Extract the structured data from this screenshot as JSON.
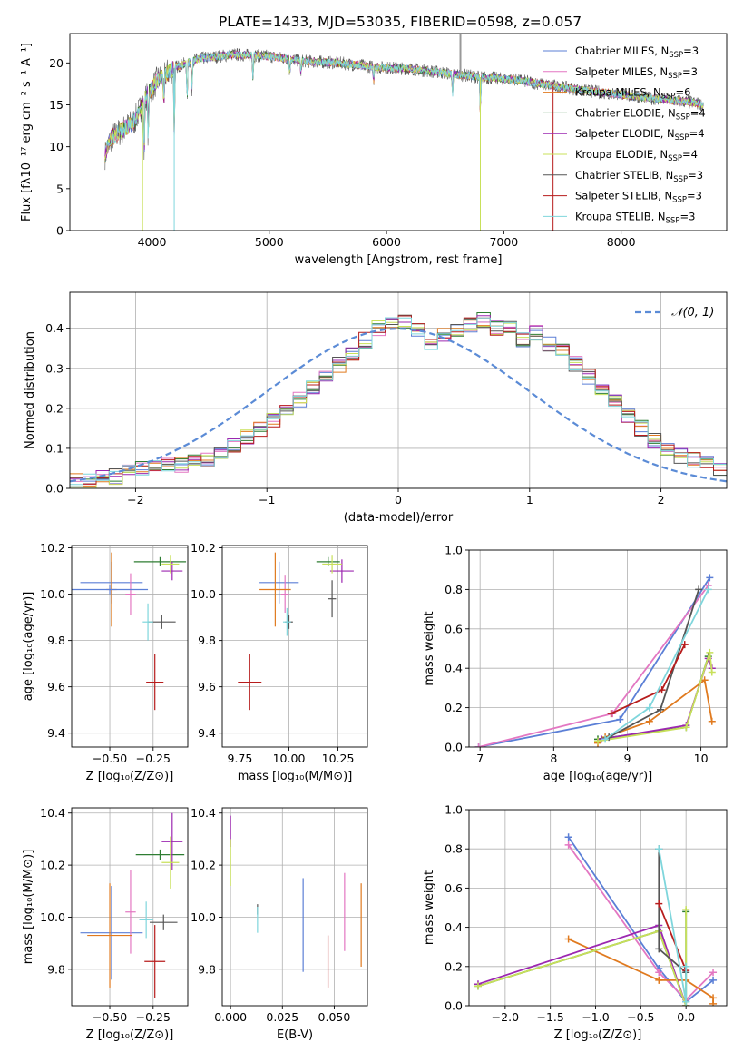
{
  "figure": {
    "title": "PLATE=1433, MJD=53035, FIBERID=0598, z=0.057"
  },
  "colors": {
    "chabrier_miles": "#5b7fd6",
    "salpeter_miles": "#e377c2",
    "kroupa_miles": "#e07a1f",
    "chabrier_elodie": "#2e7d32",
    "salpeter_elodie": "#9c27b0",
    "kroupa_elodie": "#c8e05a",
    "chabrier_stelib": "#555555",
    "salpeter_stelib": "#b71c1c",
    "kroupa_stelib": "#7fd6dc"
  },
  "chart_data": [
    {
      "id": "spectrum",
      "type": "line",
      "xlabel": "wavelength [Angstrom, rest frame]",
      "ylabel": "Flux [fλ10⁻¹⁷ erg cm⁻² s⁻¹ A⁻¹]",
      "xlim": [
        3300,
        8900
      ],
      "ylim": [
        0,
        23.5
      ],
      "xticks": [
        4000,
        5000,
        6000,
        7000,
        8000
      ],
      "yticks": [
        0,
        5,
        10,
        15,
        20
      ],
      "legend_placement": "right",
      "legend": [
        {
          "text": "Chabrier MILES, N",
          "sub": "SSP",
          "tail": "=3",
          "color": "chabrier_miles"
        },
        {
          "text": "Salpeter MILES, N",
          "sub": "SSP",
          "tail": "=3",
          "color": "salpeter_miles"
        },
        {
          "text": "Kroupa MILES, N",
          "sub": "SSP",
          "tail": "=6",
          "color": "kroupa_miles"
        },
        {
          "text": "Chabrier ELODIE, N",
          "sub": "SSP",
          "tail": "=4",
          "color": "chabrier_elodie"
        },
        {
          "text": "Salpeter ELODIE, N",
          "sub": "SSP",
          "tail": "=4",
          "color": "salpeter_elodie"
        },
        {
          "text": "Kroupa ELODIE, N",
          "sub": "SSP",
          "tail": "=4",
          "color": "kroupa_elodie"
        },
        {
          "text": "Chabrier STELIB, N",
          "sub": "SSP",
          "tail": "=3",
          "color": "chabrier_stelib"
        },
        {
          "text": "Salpeter STELIB, N",
          "sub": "SSP",
          "tail": "=3",
          "color": "salpeter_stelib"
        },
        {
          "text": "Kroupa STELIB, N",
          "sub": "SSP",
          "tail": "=3",
          "color": "kroupa_stelib"
        }
      ],
      "continuum": [
        [
          3600,
          9
        ],
        [
          3650,
          11
        ],
        [
          3750,
          12
        ],
        [
          3850,
          13
        ],
        [
          3950,
          16
        ],
        [
          4050,
          18
        ],
        [
          4200,
          19.5
        ],
        [
          4400,
          20.5
        ],
        [
          4700,
          21
        ],
        [
          5000,
          20.8
        ],
        [
          5300,
          20.2
        ],
        [
          5600,
          20
        ],
        [
          5900,
          19.5
        ],
        [
          6200,
          19.3
        ],
        [
          6500,
          18.8
        ],
        [
          6800,
          18.3
        ],
        [
          7100,
          18
        ],
        [
          7400,
          17.3
        ],
        [
          7700,
          16.7
        ],
        [
          8000,
          16.2
        ],
        [
          8300,
          15.7
        ],
        [
          8600,
          15.3
        ],
        [
          8700,
          15
        ]
      ]
    },
    {
      "id": "residual_histogram",
      "type": "step",
      "xlabel": "(data-model)/error",
      "ylabel": "Normed distribution",
      "xlim": [
        -2.5,
        2.5
      ],
      "ylim": [
        0,
        0.49
      ],
      "xticks": [
        -2,
        -1,
        0,
        1,
        2
      ],
      "yticks": [
        0.0,
        0.1,
        0.2,
        0.3,
        0.4
      ],
      "grid": true,
      "legend_placement": "top-right",
      "reference_curve": {
        "name": "𝒩(0, 1)",
        "mean": 0,
        "sigma": 1,
        "color": "#5b8bd6",
        "dash": true
      },
      "bin_width": 0.1,
      "x_start": -2.5,
      "base_values": [
        0.02,
        0.02,
        0.03,
        0.03,
        0.04,
        0.05,
        0.05,
        0.06,
        0.06,
        0.07,
        0.07,
        0.09,
        0.11,
        0.13,
        0.15,
        0.17,
        0.19,
        0.22,
        0.25,
        0.28,
        0.31,
        0.34,
        0.37,
        0.4,
        0.41,
        0.42,
        0.4,
        0.36,
        0.38,
        0.4,
        0.41,
        0.42,
        0.4,
        0.4,
        0.37,
        0.39,
        0.36,
        0.34,
        0.31,
        0.28,
        0.25,
        0.22,
        0.18,
        0.15,
        0.12,
        0.1,
        0.08,
        0.07,
        0.06,
        0.05
      ]
    },
    {
      "id": "age_vs_Z",
      "type": "errorbar",
      "xlabel": "Z [log₁₀(Z/Z⊙)]",
      "ylabel": "age  [log₁₀(age/yr)]",
      "xlim": [
        -0.72,
        -0.05
      ],
      "ylim": [
        9.34,
        10.21
      ],
      "xticks": [
        -0.5,
        -0.25
      ],
      "xtick_labels": [
        "−0.50",
        "−0.25"
      ],
      "yticks": [
        9.4,
        9.6,
        9.8,
        10.0,
        10.2
      ],
      "grid": true,
      "points": [
        {
          "color": "chabrier_miles",
          "x": -0.49,
          "xerr": 0.18,
          "y": 10.05,
          "yerr": 0.09
        },
        {
          "color": "salpeter_miles",
          "x": -0.38,
          "xerr": 0.03,
          "y": 10.0,
          "yerr": 0.09
        },
        {
          "color": "kroupa_miles",
          "x": -0.49,
          "xerr": 0.03,
          "y": 10.02,
          "yerr": 0.16
        },
        {
          "color": "chabrier_elodie",
          "x": -0.21,
          "xerr": 0.15,
          "y": 10.14,
          "yerr": 0.02
        },
        {
          "color": "salpeter_elodie",
          "x": -0.14,
          "xerr": 0.06,
          "y": 10.1,
          "yerr": 0.04
        },
        {
          "color": "kroupa_elodie",
          "x": -0.15,
          "xerr": 0.05,
          "y": 10.13,
          "yerr": 0.04
        },
        {
          "color": "chabrier_stelib",
          "x": -0.2,
          "xerr": 0.08,
          "y": 9.88,
          "yerr": 0.03
        },
        {
          "color": "salpeter_stelib",
          "x": -0.24,
          "xerr": 0.05,
          "y": 9.62,
          "yerr": 0.12
        },
        {
          "color": "kroupa_stelib",
          "x": -0.28,
          "xerr": 0.03,
          "y": 9.88,
          "yerr": 0.08
        },
        {
          "color": "chabrier_miles",
          "x": -0.5,
          "xerr": 0.22,
          "y": 10.02,
          "yerr": 0.02
        }
      ]
    },
    {
      "id": "age_vs_mass",
      "type": "errorbar",
      "xlabel": "mass [log₁₀(M/M⊙)]",
      "ylabel": "",
      "xlim": [
        9.66,
        10.4
      ],
      "ylim": [
        9.34,
        10.21
      ],
      "xticks": [
        9.75,
        10.0,
        10.25
      ],
      "xtick_labels": [
        "9.75",
        "10.00",
        "10.25"
      ],
      "yticks": [
        9.4,
        9.6,
        9.8,
        10.0,
        10.2
      ],
      "grid": true,
      "points": [
        {
          "color": "chabrier_miles",
          "x": 9.95,
          "xerr": 0.1,
          "y": 10.05,
          "yerr": 0.09
        },
        {
          "color": "salpeter_miles",
          "x": 9.98,
          "xerr": 0.02,
          "y": 10.0,
          "yerr": 0.08
        },
        {
          "color": "kroupa_miles",
          "x": 9.93,
          "xerr": 0.08,
          "y": 10.02,
          "yerr": 0.16
        },
        {
          "color": "chabrier_elodie",
          "x": 10.2,
          "xerr": 0.06,
          "y": 10.14,
          "yerr": 0.02
        },
        {
          "color": "salpeter_elodie",
          "x": 10.27,
          "xerr": 0.06,
          "y": 10.1,
          "yerr": 0.05
        },
        {
          "color": "kroupa_elodie",
          "x": 10.22,
          "xerr": 0.05,
          "y": 10.13,
          "yerr": 0.04
        },
        {
          "color": "chabrier_stelib",
          "x": 10.0,
          "xerr": 0.02,
          "y": 9.88,
          "yerr": 0.03
        },
        {
          "color": "salpeter_stelib",
          "x": 9.8,
          "xerr": 0.06,
          "y": 9.62,
          "yerr": 0.12
        },
        {
          "color": "kroupa_stelib",
          "x": 9.99,
          "xerr": 0.02,
          "y": 9.88,
          "yerr": 0.06
        },
        {
          "color": "chabrier_stelib",
          "x": 10.22,
          "xerr": 0.02,
          "y": 9.98,
          "yerr": 0.08
        }
      ]
    },
    {
      "id": "massweight_vs_age",
      "type": "line",
      "xlabel": "age  [log₁₀(age/yr)]",
      "ylabel": "mass weight",
      "xlim": [
        6.85,
        10.35
      ],
      "ylim": [
        0,
        1.0
      ],
      "xticks": [
        7,
        8,
        9,
        10
      ],
      "yticks": [
        0.0,
        0.2,
        0.4,
        0.6,
        0.8,
        1.0
      ],
      "grid": true,
      "series": [
        {
          "color": "chabrier_miles",
          "x": [
            6.98,
            8.9,
            10.12
          ],
          "y": [
            0.0,
            0.14,
            0.86
          ]
        },
        {
          "color": "salpeter_miles",
          "x": [
            6.98,
            8.8,
            10.1
          ],
          "y": [
            0.0,
            0.17,
            0.82
          ]
        },
        {
          "color": "kroupa_miles",
          "x": [
            8.6,
            8.7,
            9.3,
            10.05,
            10.15
          ],
          "y": [
            0.02,
            0.05,
            0.13,
            0.34,
            0.13
          ]
        },
        {
          "color": "chabrier_elodie",
          "x": [
            8.6,
            9.8,
            10.1
          ],
          "y": [
            0.04,
            0.1,
            0.46
          ]
        },
        {
          "color": "salpeter_elodie",
          "x": [
            8.65,
            9.8,
            10.1,
            10.15
          ],
          "y": [
            0.04,
            0.11,
            0.45,
            0.4
          ]
        },
        {
          "color": "kroupa_elodie",
          "x": [
            8.6,
            9.8,
            10.12,
            10.15
          ],
          "y": [
            0.03,
            0.1,
            0.48,
            0.38
          ]
        },
        {
          "color": "chabrier_stelib",
          "x": [
            8.75,
            9.45,
            9.97
          ],
          "y": [
            0.05,
            0.19,
            0.8
          ]
        },
        {
          "color": "salpeter_stelib",
          "x": [
            8.78,
            9.47,
            9.78
          ],
          "y": [
            0.17,
            0.29,
            0.52
          ]
        },
        {
          "color": "kroupa_stelib",
          "x": [
            8.7,
            9.3,
            10.1
          ],
          "y": [
            0.04,
            0.2,
            0.8
          ]
        }
      ]
    },
    {
      "id": "mass_vs_Z",
      "type": "errorbar",
      "xlabel": "Z [log₁₀(Z/Z⊙)]",
      "ylabel": "mass [log₁₀(M/M⊙)]",
      "xlim": [
        -0.72,
        -0.05
      ],
      "ylim": [
        9.66,
        10.42
      ],
      "xticks": [
        -0.5,
        -0.25
      ],
      "xtick_labels": [
        "−0.50",
        "−0.25"
      ],
      "yticks": [
        9.8,
        10.0,
        10.2,
        10.4
      ],
      "grid": true,
      "points": [
        {
          "color": "chabrier_miles",
          "x": -0.49,
          "xerr": 0.18,
          "y": 9.94,
          "yerr": 0.18
        },
        {
          "color": "salpeter_miles",
          "x": -0.38,
          "xerr": 0.03,
          "y": 10.02,
          "yerr": 0.16
        },
        {
          "color": "kroupa_miles",
          "x": -0.5,
          "xerr": 0.13,
          "y": 9.93,
          "yerr": 0.2
        },
        {
          "color": "chabrier_elodie",
          "x": -0.21,
          "xerr": 0.14,
          "y": 10.24,
          "yerr": 0.02
        },
        {
          "color": "salpeter_elodie",
          "x": -0.14,
          "xerr": 0.06,
          "y": 10.29,
          "yerr": 0.11
        },
        {
          "color": "kroupa_elodie",
          "x": -0.15,
          "xerr": 0.05,
          "y": 10.21,
          "yerr": 0.1
        },
        {
          "color": "chabrier_stelib",
          "x": -0.19,
          "xerr": 0.08,
          "y": 9.98,
          "yerr": 0.03
        },
        {
          "color": "salpeter_stelib",
          "x": -0.24,
          "xerr": 0.06,
          "y": 9.83,
          "yerr": 0.14
        },
        {
          "color": "kroupa_stelib",
          "x": -0.29,
          "xerr": 0.04,
          "y": 9.99,
          "yerr": 0.07
        }
      ]
    },
    {
      "id": "mass_vs_ebv",
      "type": "errorbar",
      "xlabel": "E(B-V)",
      "ylabel": "",
      "xlim": [
        -0.004,
        0.066
      ],
      "ylim": [
        9.66,
        10.42
      ],
      "xticks": [
        0.0,
        0.025,
        0.05
      ],
      "xtick_labels": [
        "0.000",
        "0.025",
        "0.050"
      ],
      "yticks": [
        9.8,
        10.0,
        10.2,
        10.4
      ],
      "grid": true,
      "points": [
        {
          "color": "chabrier_miles",
          "x": 0.035,
          "xerr": 0,
          "y": 9.97,
          "yerr": 0.18
        },
        {
          "color": "salpeter_miles",
          "x": 0.055,
          "xerr": 0,
          "y": 10.02,
          "yerr": 0.15
        },
        {
          "color": "kroupa_miles",
          "x": 0.063,
          "xerr": 0,
          "y": 9.97,
          "yerr": 0.16
        },
        {
          "color": "salpeter_elodie",
          "x": 0.0,
          "xerr": 0,
          "y": 10.33,
          "yerr": 0.06
        },
        {
          "color": "kroupa_elodie",
          "x": 0.0,
          "xerr": 0,
          "y": 10.21,
          "yerr": 0.09
        },
        {
          "color": "chabrier_stelib",
          "x": 0.013,
          "xerr": 0,
          "y": 10.03,
          "yerr": 0.02
        },
        {
          "color": "salpeter_stelib",
          "x": 0.047,
          "xerr": 0,
          "y": 9.83,
          "yerr": 0.1
        },
        {
          "color": "kroupa_stelib",
          "x": 0.013,
          "xerr": 0,
          "y": 9.99,
          "yerr": 0.05
        }
      ]
    },
    {
      "id": "massweight_vs_Z",
      "type": "line",
      "xlabel": "Z [log₁₀(Z/Z⊙)]",
      "ylabel": "mass weight",
      "xlim": [
        -2.4,
        0.45
      ],
      "ylim": [
        0,
        1.0
      ],
      "xticks": [
        -2.0,
        -1.5,
        -1.0,
        -0.5,
        0.0
      ],
      "xtick_labels": [
        "−2.0",
        "−1.5",
        "−1.0",
        "−0.5",
        "0.0"
      ],
      "yticks": [
        0.0,
        0.2,
        0.4,
        0.6,
        0.8,
        1.0
      ],
      "grid": true,
      "series": [
        {
          "color": "chabrier_miles",
          "x": [
            -1.3,
            -0.3,
            0.0,
            0.3
          ],
          "y": [
            0.86,
            0.19,
            0.02,
            0.13
          ]
        },
        {
          "color": "salpeter_miles",
          "x": [
            -1.3,
            -0.3,
            0.0,
            0.3
          ],
          "y": [
            0.82,
            0.17,
            0.03,
            0.17
          ]
        },
        {
          "color": "kroupa_miles",
          "x": [
            -1.3,
            -0.3,
            0.0,
            0.3,
            0.3
          ],
          "y": [
            0.34,
            0.13,
            0.13,
            0.04,
            0.01
          ]
        },
        {
          "color": "chabrier_elodie",
          "x": [
            -2.3,
            -0.3,
            0.0,
            0.0
          ],
          "y": [
            0.1,
            0.38,
            0.0,
            0.48
          ]
        },
        {
          "color": "salpeter_elodie",
          "x": [
            -2.3,
            -0.3,
            0.0
          ],
          "y": [
            0.11,
            0.41,
            0.0
          ]
        },
        {
          "color": "kroupa_elodie",
          "x": [
            -2.3,
            -0.3,
            0.0,
            0.0
          ],
          "y": [
            0.1,
            0.38,
            0.0,
            0.49
          ]
        },
        {
          "color": "chabrier_stelib",
          "x": [
            -0.3,
            -0.3,
            0.0
          ],
          "y": [
            0.8,
            0.29,
            0.17
          ]
        },
        {
          "color": "salpeter_stelib",
          "x": [
            -0.3,
            0.0
          ],
          "y": [
            0.52,
            0.18
          ]
        },
        {
          "color": "kroupa_stelib",
          "x": [
            -0.3,
            0.0,
            0.0
          ],
          "y": [
            0.8,
            0.02,
            0.2
          ]
        }
      ]
    }
  ]
}
